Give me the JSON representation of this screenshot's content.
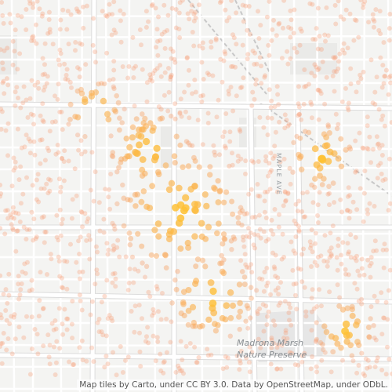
{
  "map": {
    "park_label_line1": "Madrona Marsh",
    "park_label_line2": "Nature Preserve",
    "street_label": "MAPLE AVE",
    "attribution": "Map tiles by Carto, under CC BY 3.0. Data by OpenStreetMap, under ODbL.",
    "colors": {
      "background": "#f4f4f2",
      "road": "#ffffff",
      "road_casing": "#dcdcdc",
      "block": "#eaeae8",
      "park": "#e6e6e6",
      "railway": "#c8c8c8",
      "point_low": "#f5a07a",
      "point_high": "#ffc430"
    }
  }
}
